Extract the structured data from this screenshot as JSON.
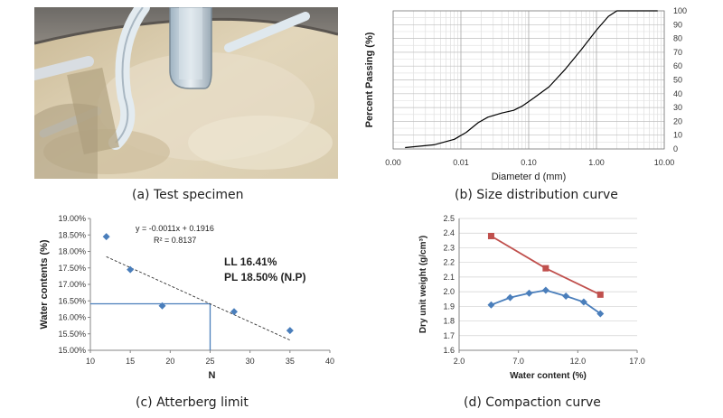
{
  "captions": {
    "a": "(a) Test specimen",
    "b": "(b) Size distribution curve",
    "c": "(c) Atterberg limit",
    "d": "(d) Compaction curve"
  },
  "colors": {
    "blue_series": "#4a7ebb",
    "red_series": "#c0504d",
    "grid": "#bfbfbf"
  },
  "chart_data": [
    {
      "id": "size_distribution",
      "type": "line",
      "xscale": "log",
      "xlabel": "Diameter d (mm)",
      "ylabel": "Percent Passing (%)",
      "xlim": [
        0.001,
        10
      ],
      "ylim": [
        0,
        100
      ],
      "xtick_labels": [
        "0.00",
        "0.01",
        "0.10",
        "1.00",
        "10.00"
      ],
      "ytick_labels": [
        "0",
        "10",
        "20",
        "30",
        "40",
        "50",
        "60",
        "70",
        "80",
        "90",
        "100"
      ],
      "grid": true,
      "series": [
        {
          "x": [
            0.0015,
            0.004,
            0.008,
            0.012,
            0.018,
            0.025,
            0.04,
            0.06,
            0.08,
            0.12,
            0.2,
            0.35,
            0.6,
            1.0,
            1.5,
            2.0,
            3.0,
            8.0
          ],
          "y": [
            1,
            3,
            7,
            12,
            19,
            23,
            26,
            28,
            31,
            37,
            45,
            58,
            72,
            86,
            96,
            100,
            100,
            100
          ]
        }
      ]
    },
    {
      "id": "atterberg",
      "type": "scatter",
      "xlabel": "N",
      "ylabel": "Water contents (%)",
      "xlim": [
        10,
        40
      ],
      "ylim": [
        15.0,
        19.0
      ],
      "xtick_labels": [
        "10",
        "15",
        "20",
        "25",
        "30",
        "35",
        "40"
      ],
      "ytick_labels": [
        "15.00%",
        "15.50%",
        "16.00%",
        "16.50%",
        "17.00%",
        "17.50%",
        "18.00%",
        "18.50%",
        "19.00%"
      ],
      "points": {
        "x": [
          12,
          15,
          19,
          28,
          35
        ],
        "y": [
          18.45,
          17.45,
          16.35,
          16.17,
          15.6
        ]
      },
      "trendline": {
        "x": [
          12,
          35
        ],
        "y": [
          17.84,
          15.31
        ]
      },
      "reference_lines": {
        "x": 25,
        "y": 16.41
      },
      "annotations": {
        "equation": "y = -0.0011x + 0.1916",
        "r2": "R² = 0.8137",
        "ll": "LL 16.41%",
        "pl": "PL 18.50% (N.P)"
      }
    },
    {
      "id": "compaction",
      "type": "line",
      "xlabel": "Water content (%)",
      "ylabel": "Dry unit weight (g/cm³)",
      "xlim": [
        2.0,
        17.0
      ],
      "ylim": [
        1.6,
        2.5
      ],
      "xtick_labels": [
        "2.0",
        "7.0",
        "12.0",
        "17.0"
      ],
      "ytick_labels": [
        "1.6",
        "1.7",
        "1.8",
        "1.9",
        "2.0",
        "2.1",
        "2.2",
        "2.3",
        "2.4",
        "2.5"
      ],
      "series": [
        {
          "marker": "diamond",
          "color": "#4a7ebb",
          "x": [
            4.7,
            6.3,
            7.9,
            9.3,
            11.0,
            12.5,
            13.9
          ],
          "y": [
            1.91,
            1.96,
            1.99,
            2.01,
            1.97,
            1.93,
            1.85
          ]
        },
        {
          "marker": "square",
          "color": "#c0504d",
          "x": [
            4.7,
            9.3,
            13.9
          ],
          "y": [
            2.38,
            2.16,
            1.98
          ]
        }
      ]
    }
  ]
}
